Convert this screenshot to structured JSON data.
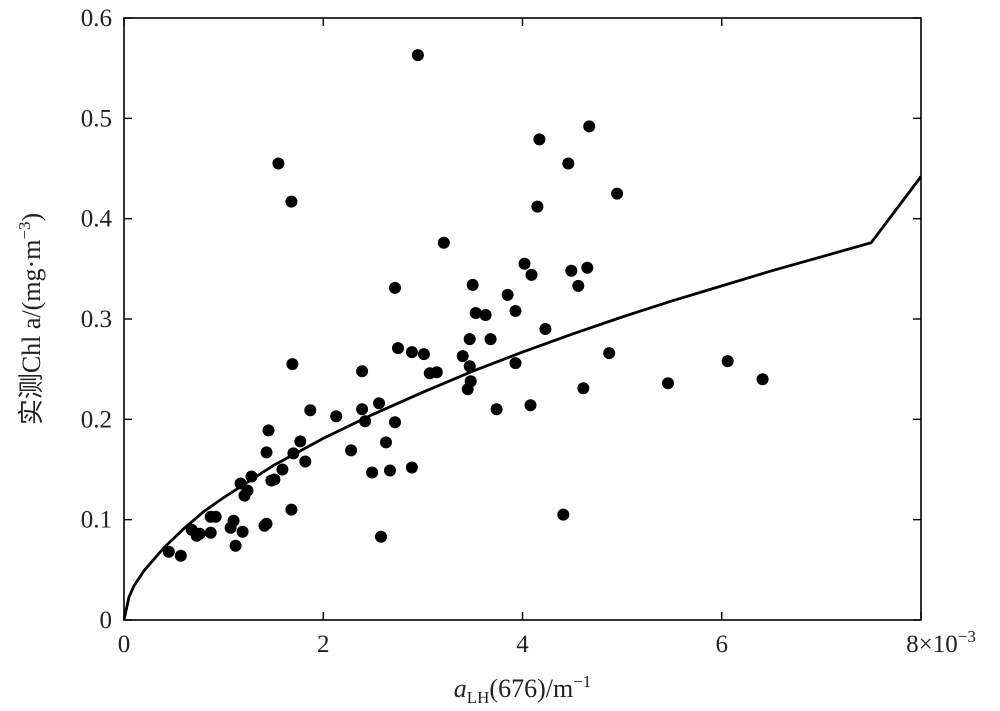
{
  "chart_data": {
    "type": "scatter",
    "xlabel": {
      "base": "a",
      "sub": "LH",
      "rest": "(676)/m",
      "sup": "−1"
    },
    "ylabel": {
      "main": "实测Chl a/(mg·m",
      "sup": "−3",
      "close": ")"
    },
    "x_multiplier": {
      "text": "8×10",
      "sup": "−3"
    },
    "xlim": [
      0,
      8
    ],
    "ylim": [
      0,
      0.6
    ],
    "x_ticks": [
      {
        "value": 0,
        "label": "0"
      },
      {
        "value": 2,
        "label": "2"
      },
      {
        "value": 4,
        "label": "4"
      },
      {
        "value": 6,
        "label": "6"
      }
    ],
    "y_ticks": [
      {
        "value": 0,
        "label": "0"
      },
      {
        "value": 0.1,
        "label": "0.1"
      },
      {
        "value": 0.2,
        "label": "0.2"
      },
      {
        "value": 0.3,
        "label": "0.3"
      },
      {
        "value": 0.4,
        "label": "0.4"
      },
      {
        "value": 0.5,
        "label": "0.5"
      },
      {
        "value": 0.6,
        "label": "0.6"
      }
    ],
    "grid": false,
    "points": [
      {
        "x": 0.45,
        "y": 0.068
      },
      {
        "x": 0.57,
        "y": 0.064
      },
      {
        "x": 0.68,
        "y": 0.09
      },
      {
        "x": 0.73,
        "y": 0.084
      },
      {
        "x": 0.76,
        "y": 0.086
      },
      {
        "x": 0.87,
        "y": 0.087
      },
      {
        "x": 0.87,
        "y": 0.103
      },
      {
        "x": 0.92,
        "y": 0.103
      },
      {
        "x": 1.07,
        "y": 0.092
      },
      {
        "x": 1.1,
        "y": 0.099
      },
      {
        "x": 1.12,
        "y": 0.074
      },
      {
        "x": 1.19,
        "y": 0.088
      },
      {
        "x": 1.17,
        "y": 0.136
      },
      {
        "x": 1.21,
        "y": 0.124
      },
      {
        "x": 1.24,
        "y": 0.129
      },
      {
        "x": 1.28,
        "y": 0.143
      },
      {
        "x": 1.41,
        "y": 0.094
      },
      {
        "x": 1.43,
        "y": 0.096
      },
      {
        "x": 1.43,
        "y": 0.167
      },
      {
        "x": 1.45,
        "y": 0.189
      },
      {
        "x": 1.48,
        "y": 0.139
      },
      {
        "x": 1.51,
        "y": 0.14
      },
      {
        "x": 1.59,
        "y": 0.15
      },
      {
        "x": 1.55,
        "y": 0.455
      },
      {
        "x": 1.68,
        "y": 0.417
      },
      {
        "x": 1.68,
        "y": 0.11
      },
      {
        "x": 1.69,
        "y": 0.255
      },
      {
        "x": 1.7,
        "y": 0.166
      },
      {
        "x": 1.77,
        "y": 0.178
      },
      {
        "x": 1.82,
        "y": 0.158
      },
      {
        "x": 1.87,
        "y": 0.209
      },
      {
        "x": 2.13,
        "y": 0.203
      },
      {
        "x": 2.28,
        "y": 0.169
      },
      {
        "x": 2.39,
        "y": 0.248
      },
      {
        "x": 2.39,
        "y": 0.21
      },
      {
        "x": 2.42,
        "y": 0.198
      },
      {
        "x": 2.49,
        "y": 0.147
      },
      {
        "x": 2.56,
        "y": 0.216
      },
      {
        "x": 2.58,
        "y": 0.083
      },
      {
        "x": 2.63,
        "y": 0.177
      },
      {
        "x": 2.67,
        "y": 0.149
      },
      {
        "x": 2.72,
        "y": 0.197
      },
      {
        "x": 2.72,
        "y": 0.331
      },
      {
        "x": 2.75,
        "y": 0.271
      },
      {
        "x": 2.89,
        "y": 0.267
      },
      {
        "x": 2.89,
        "y": 0.152
      },
      {
        "x": 2.95,
        "y": 0.563
      },
      {
        "x": 3.01,
        "y": 0.265
      },
      {
        "x": 3.07,
        "y": 0.246
      },
      {
        "x": 3.14,
        "y": 0.247
      },
      {
        "x": 3.21,
        "y": 0.376
      },
      {
        "x": 3.4,
        "y": 0.263
      },
      {
        "x": 3.45,
        "y": 0.23
      },
      {
        "x": 3.47,
        "y": 0.28
      },
      {
        "x": 3.47,
        "y": 0.253
      },
      {
        "x": 3.48,
        "y": 0.238
      },
      {
        "x": 3.5,
        "y": 0.334
      },
      {
        "x": 3.53,
        "y": 0.306
      },
      {
        "x": 3.63,
        "y": 0.304
      },
      {
        "x": 3.68,
        "y": 0.28
      },
      {
        "x": 3.74,
        "y": 0.21
      },
      {
        "x": 3.85,
        "y": 0.324
      },
      {
        "x": 3.93,
        "y": 0.308
      },
      {
        "x": 3.93,
        "y": 0.256
      },
      {
        "x": 4.02,
        "y": 0.355
      },
      {
        "x": 4.09,
        "y": 0.344
      },
      {
        "x": 4.08,
        "y": 0.214
      },
      {
        "x": 4.15,
        "y": 0.412
      },
      {
        "x": 4.17,
        "y": 0.479
      },
      {
        "x": 4.23,
        "y": 0.29
      },
      {
        "x": 4.41,
        "y": 0.105
      },
      {
        "x": 4.46,
        "y": 0.455
      },
      {
        "x": 4.49,
        "y": 0.348
      },
      {
        "x": 4.56,
        "y": 0.333
      },
      {
        "x": 4.61,
        "y": 0.231
      },
      {
        "x": 4.65,
        "y": 0.351
      },
      {
        "x": 4.67,
        "y": 0.492
      },
      {
        "x": 4.87,
        "y": 0.266
      },
      {
        "x": 4.95,
        "y": 0.425
      },
      {
        "x": 5.46,
        "y": 0.236
      },
      {
        "x": 6.06,
        "y": 0.258
      },
      {
        "x": 6.41,
        "y": 0.24
      }
    ],
    "fit_curve": {
      "type": "line",
      "x": [
        0,
        0.05,
        0.1,
        0.2,
        0.4,
        0.6,
        0.8,
        1.0,
        1.5,
        2.0,
        2.5,
        3.0,
        3.5,
        4.0,
        4.5,
        5.0,
        5.5,
        6.0,
        6.5,
        7.0,
        7.5,
        8.0
      ],
      "y": [
        0,
        0.023,
        0.034,
        0.049,
        0.072,
        0.091,
        0.108,
        0.122,
        0.154,
        0.181,
        0.205,
        0.227,
        0.248,
        0.267,
        0.285,
        0.302,
        0.318,
        0.333,
        0.348,
        0.362,
        0.376,
        0.442
      ]
    }
  }
}
